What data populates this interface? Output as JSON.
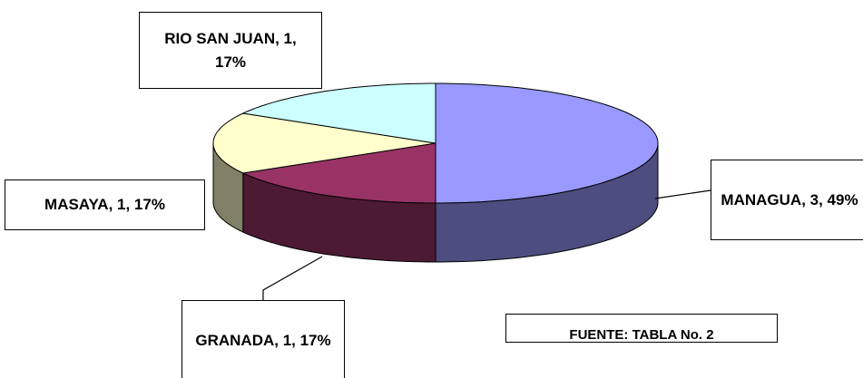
{
  "chart_data": {
    "type": "pie3d",
    "categories": [
      "MANAGUA",
      "GRANADA",
      "MASAYA",
      "RIO SAN JUAN"
    ],
    "values": [
      3,
      1,
      1,
      1
    ],
    "value_labels": [
      "MANAGUA, 3, 49%",
      "GRANADA, 1, 17%",
      "MASAYA, 1, 17%",
      "RIO SAN JUAN, 1, 17%"
    ],
    "colors": [
      "#9999ff",
      "#993366",
      "#ffffcc",
      "#ccffff"
    ],
    "side_colors": [
      "#4d4d80",
      "#4d1a33",
      "#808066",
      "#668080"
    ],
    "source": "FUENTE: TABLA No. 2"
  }
}
